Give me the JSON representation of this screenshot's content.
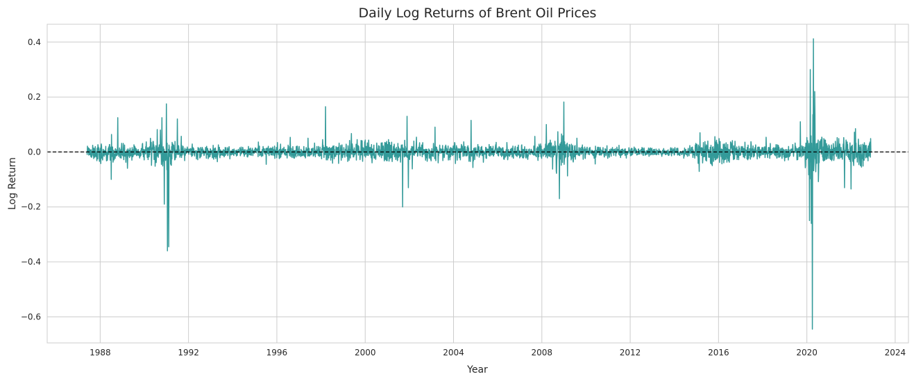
{
  "chart_data": {
    "type": "line",
    "title": "Daily Log Returns of Brent Oil Prices",
    "xlabel": "Year",
    "ylabel": "Log Return",
    "x_ticks": [
      "1988",
      "1992",
      "1996",
      "2000",
      "2004",
      "2008",
      "2012",
      "2016",
      "2020",
      "2024"
    ],
    "y_ticks": [
      "0.4",
      "0.2",
      "0.0",
      "−0.2",
      "−0.4",
      "−0.6"
    ],
    "xlim": [
      1985.6,
      2024.6
    ],
    "ylim": [
      -0.695,
      0.465
    ],
    "grid": true,
    "legend": "none",
    "x_range": [
      1987.4,
      2022.9
    ],
    "reference_line": {
      "y": 0.0,
      "style": "dashed",
      "color": "#000000"
    },
    "series": [
      {
        "color": "#339a99",
        "volatility_profile": [
          [
            1987.4,
            0.012
          ],
          [
            1988.0,
            0.03
          ],
          [
            1989.0,
            0.022
          ],
          [
            1990.0,
            0.02
          ],
          [
            1990.6,
            0.045
          ],
          [
            1991.2,
            0.04
          ],
          [
            1991.6,
            0.018
          ],
          [
            1993.0,
            0.016
          ],
          [
            1995.0,
            0.012
          ],
          [
            1996.0,
            0.018
          ],
          [
            1997.0,
            0.02
          ],
          [
            1998.5,
            0.025
          ],
          [
            2000.0,
            0.03
          ],
          [
            2002.0,
            0.025
          ],
          [
            2004.0,
            0.022
          ],
          [
            2006.0,
            0.018
          ],
          [
            2008.0,
            0.02
          ],
          [
            2008.8,
            0.05
          ],
          [
            2009.4,
            0.03
          ],
          [
            2010.0,
            0.015
          ],
          [
            2012.0,
            0.013
          ],
          [
            2014.0,
            0.01
          ],
          [
            2014.8,
            0.012
          ],
          [
            2015.0,
            0.03
          ],
          [
            2016.0,
            0.035
          ],
          [
            2017.0,
            0.02
          ],
          [
            2019.0,
            0.02
          ],
          [
            2019.9,
            0.02
          ],
          [
            2020.3,
            0.1
          ],
          [
            2020.8,
            0.035
          ],
          [
            2021.5,
            0.025
          ],
          [
            2022.0,
            0.035
          ],
          [
            2022.9,
            0.03
          ]
        ],
        "extreme_points": [
          {
            "x": 1988.8,
            "y": 0.125
          },
          {
            "x": 1988.5,
            "y": -0.1
          },
          {
            "x": 1990.8,
            "y": 0.125
          },
          {
            "x": 1990.9,
            "y": -0.19
          },
          {
            "x": 1991.0,
            "y": 0.175
          },
          {
            "x": 1991.05,
            "y": -0.36
          },
          {
            "x": 1991.1,
            "y": -0.345
          },
          {
            "x": 1991.5,
            "y": 0.12
          },
          {
            "x": 1998.2,
            "y": 0.165
          },
          {
            "x": 2001.7,
            "y": -0.2
          },
          {
            "x": 2001.9,
            "y": 0.13
          },
          {
            "x": 2001.95,
            "y": -0.13
          },
          {
            "x": 2004.8,
            "y": 0.115
          },
          {
            "x": 2008.8,
            "y": -0.17
          },
          {
            "x": 2009.0,
            "y": 0.182
          },
          {
            "x": 2008.2,
            "y": 0.1
          },
          {
            "x": 2019.7,
            "y": 0.11
          },
          {
            "x": 2020.15,
            "y": 0.3
          },
          {
            "x": 2020.2,
            "y": -0.26
          },
          {
            "x": 2020.25,
            "y": -0.645
          },
          {
            "x": 2020.3,
            "y": 0.412
          },
          {
            "x": 2020.35,
            "y": 0.22
          },
          {
            "x": 2020.12,
            "y": -0.25
          },
          {
            "x": 2021.7,
            "y": -0.13
          },
          {
            "x": 2022.0,
            "y": -0.135
          },
          {
            "x": 2022.2,
            "y": 0.085
          }
        ]
      }
    ]
  }
}
